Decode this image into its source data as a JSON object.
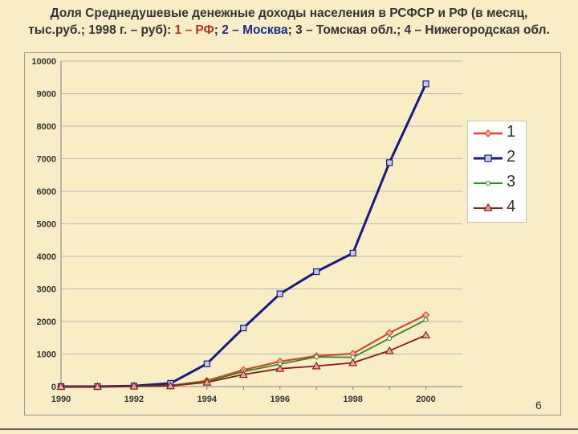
{
  "title": {
    "line1": "Доля Среднедушевые денежные доходы населения в РСФСР и РФ (в месяц,",
    "line2_prefix": "тыс.руб.; 1998 г. – руб): ",
    "rf": "1 – РФ",
    "sep1": "; ",
    "moscow": "2 – Москва",
    "sep2": "; ",
    "tomsk": "3 – Томская обл.",
    "sep3": "; ",
    "nizhny": "4 – Нижегородская обл."
  },
  "page_number": "6",
  "colors": {
    "s1": "#d9442b",
    "s2": "#1a1a80",
    "s3": "#2e8b22",
    "s4": "#8b1a12",
    "grid": "#b9b9b9",
    "axis": "#808080"
  },
  "chart_data": {
    "type": "line",
    "title": "Доля Среднедушевые денежные доходы населения в РСФСР и РФ (в месяц, тыс.руб.; 1998 г. – руб)",
    "xlabel": "",
    "ylabel": "",
    "x": [
      1990,
      1991,
      1992,
      1993,
      1994,
      1995,
      1996,
      1997,
      1998,
      1999,
      2000
    ],
    "xticks": [
      "1990",
      "1992",
      "1994",
      "1996",
      "1998",
      "2000"
    ],
    "xlim": [
      1990,
      2001
    ],
    "yticks": [
      "0",
      "1000",
      "2000",
      "3000",
      "4000",
      "5000",
      "6000",
      "7000",
      "8000",
      "9000",
      "10000"
    ],
    "ylim": [
      0,
      10000
    ],
    "grid": true,
    "legend_position": "right",
    "series": [
      {
        "name": "1",
        "marker": "diamond",
        "color": "#d9442b",
        "values": [
          0,
          0,
          10,
          30,
          180,
          510,
          770,
          940,
          1010,
          1650,
          2200
        ]
      },
      {
        "name": "2",
        "marker": "square",
        "color": "#1a1a80",
        "values": [
          0,
          0,
          20,
          100,
          700,
          1800,
          2850,
          3530,
          4100,
          6880,
          9300
        ]
      },
      {
        "name": "3",
        "marker": "circle",
        "color": "#2e8b22",
        "values": [
          0,
          0,
          10,
          30,
          160,
          460,
          690,
          910,
          900,
          1480,
          2050
        ]
      },
      {
        "name": "4",
        "marker": "triangle",
        "color": "#8b1a12",
        "values": [
          0,
          0,
          10,
          20,
          130,
          370,
          550,
          630,
          730,
          1100,
          1580
        ]
      }
    ]
  }
}
